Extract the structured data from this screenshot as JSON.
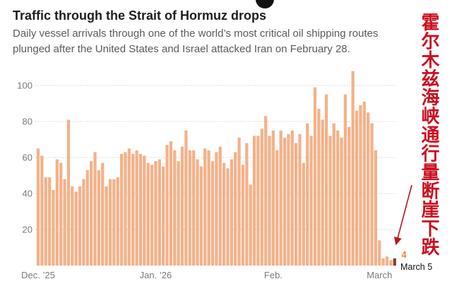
{
  "chart_data": {
    "type": "bar",
    "title": "Traffic through the Strait of Hormuz drops",
    "subtitle": [
      "Daily vessel arrivals through one of the world’s most critical oil shipping routes",
      "plunged after the United States and Israel attacked Iran on February 28."
    ],
    "xlabel": "",
    "ylabel": "",
    "ylim": [
      0,
      110
    ],
    "yticks": [
      20,
      40,
      60,
      80,
      100
    ],
    "grid": true,
    "legend": "none",
    "bar_color": "#f3b28a",
    "highlight_color": "#8c3f22",
    "months": [
      {
        "label": "Dec. ’25",
        "values": [
          65,
          61,
          49,
          49,
          42,
          59,
          57,
          48,
          81,
          44,
          41,
          44,
          48,
          53,
          58,
          63,
          53,
          57,
          44,
          48,
          48,
          49,
          62,
          63,
          65,
          62,
          64,
          62,
          61,
          57,
          56
        ]
      },
      {
        "label": "Jan. ’26",
        "values": [
          58,
          59,
          55,
          67,
          69,
          64,
          58,
          66,
          75,
          64,
          64,
          59,
          55,
          65,
          64,
          58,
          63,
          66,
          57,
          54,
          59,
          63,
          71,
          56,
          68,
          45,
          72,
          72,
          76,
          83,
          72
        ]
      },
      {
        "label": "Feb.",
        "values": [
          75,
          64,
          75,
          71,
          73,
          75,
          68,
          73,
          57,
          79,
          72,
          99,
          87,
          81,
          95,
          72,
          79,
          75,
          71,
          95,
          77,
          108,
          86,
          89,
          91,
          85,
          79,
          64
        ]
      },
      {
        "label": "March",
        "values": [
          14,
          4,
          5,
          3,
          4
        ]
      }
    ],
    "annotation": {
      "value": "4",
      "label": "March 5",
      "color": "#e8843c"
    }
  },
  "overlay": {
    "caption_zh": "霍尔木兹海峡通行量断崖下跌",
    "caption_color": "#cc1020",
    "arrow_color": "#c0141e"
  }
}
